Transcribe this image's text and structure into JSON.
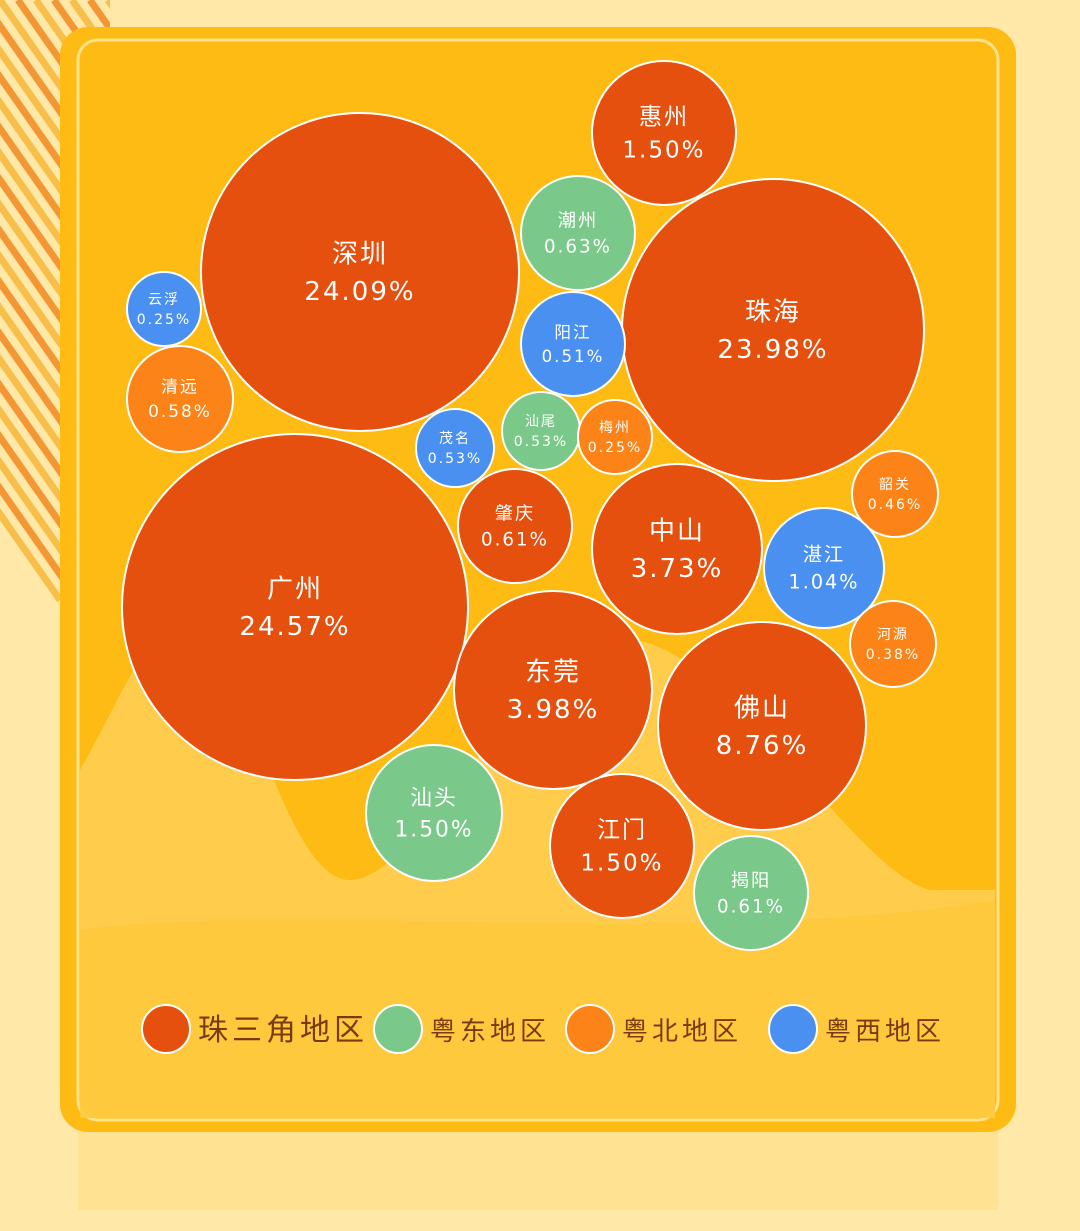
{
  "colors": {
    "page_bg": "#FFE8A8",
    "card": "#FEBB14",
    "card_inner_line": "#FFE38A",
    "hill": "#FFD25E",
    "stripe_orange": "#F28A22",
    "stripe_yellow": "#F6B73A",
    "label": "#7A3A10"
  },
  "chart_data": {
    "type": "bubble",
    "title": "",
    "unit": "%",
    "legend_position": "bottom",
    "groups": [
      {
        "name": "珠三角地区",
        "color": "#E5500E"
      },
      {
        "name": "粤东地区",
        "color": "#7BC98A"
      },
      {
        "name": "粤北地区",
        "color": "#FB8318"
      },
      {
        "name": "粤西地区",
        "color": "#4A90F0"
      }
    ],
    "points": [
      {
        "city": "惠州",
        "value": 1.5,
        "label": "1.50%",
        "group": "珠三角地区"
      },
      {
        "city": "深圳",
        "value": 24.09,
        "label": "24.09%",
        "group": "珠三角地区"
      },
      {
        "city": "潮州",
        "value": 0.63,
        "label": "0.63%",
        "group": "粤东地区"
      },
      {
        "city": "珠海",
        "value": 23.98,
        "label": "23.98%",
        "group": "珠三角地区"
      },
      {
        "city": "云浮",
        "value": 0.25,
        "label": "0.25%",
        "group": "粤西地区"
      },
      {
        "city": "阳江",
        "value": 0.51,
        "label": "0.51%",
        "group": "粤西地区"
      },
      {
        "city": "清远",
        "value": 0.58,
        "label": "0.58%",
        "group": "粤北地区"
      },
      {
        "city": "汕尾",
        "value": 0.53,
        "label": "0.53%",
        "group": "粤东地区"
      },
      {
        "city": "梅州",
        "value": 0.25,
        "label": "0.25%",
        "group": "粤北地区"
      },
      {
        "city": "茂名",
        "value": 0.53,
        "label": "0.53%",
        "group": "粤西地区"
      },
      {
        "city": "韶关",
        "value": 0.46,
        "label": "0.46%",
        "group": "粤北地区"
      },
      {
        "city": "肇庆",
        "value": 0.61,
        "label": "0.61%",
        "group": "珠三角地区"
      },
      {
        "city": "中山",
        "value": 3.73,
        "label": "3.73%",
        "group": "珠三角地区"
      },
      {
        "city": "湛江",
        "value": 1.04,
        "label": "1.04%",
        "group": "粤西地区"
      },
      {
        "city": "广州",
        "value": 24.57,
        "label": "24.57%",
        "group": "珠三角地区"
      },
      {
        "city": "河源",
        "value": 0.38,
        "label": "0.38%",
        "group": "粤北地区"
      },
      {
        "city": "东莞",
        "value": 3.98,
        "label": "3.98%",
        "group": "珠三角地区"
      },
      {
        "city": "佛山",
        "value": 8.76,
        "label": "8.76%",
        "group": "珠三角地区"
      },
      {
        "city": "汕头",
        "value": 1.5,
        "label": "1.50%",
        "group": "粤东地区"
      },
      {
        "city": "江门",
        "value": 1.5,
        "label": "1.50%",
        "group": "珠三角地区"
      },
      {
        "city": "揭阳",
        "value": 0.61,
        "label": "0.61%",
        "group": "粤东地区"
      }
    ]
  }
}
